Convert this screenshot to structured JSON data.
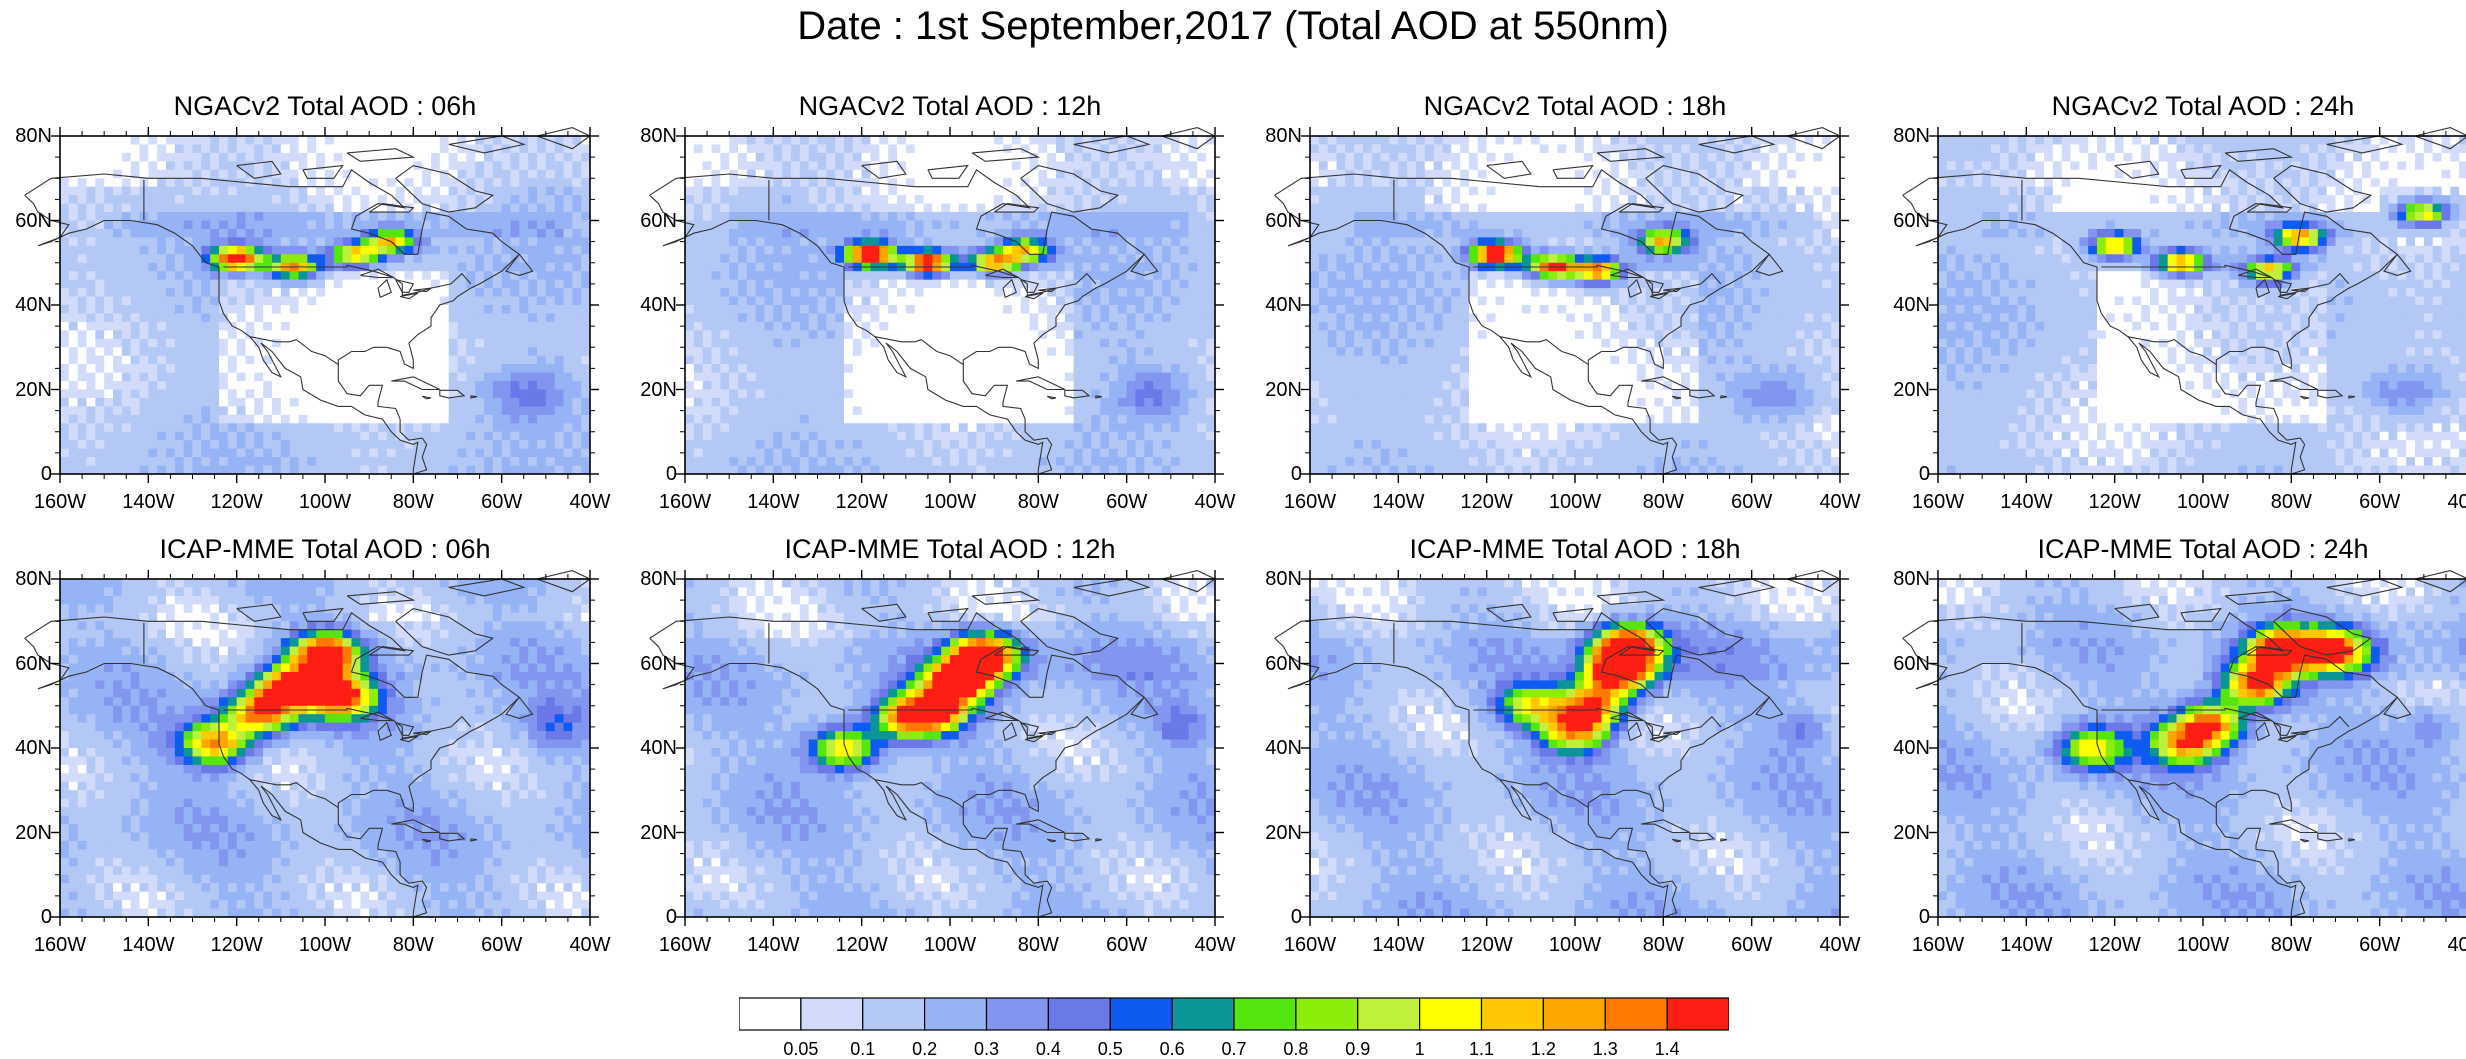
{
  "title": "Date : 1st September,2017 (Total AOD at 550nm)",
  "axis": {
    "lat_ticks": [
      {
        "value": 80,
        "label": "80N"
      },
      {
        "value": 60,
        "label": "60N"
      },
      {
        "value": 40,
        "label": "40N"
      },
      {
        "value": 20,
        "label": "20N"
      },
      {
        "value": 0,
        "label": "0"
      }
    ],
    "lon_ticks": [
      {
        "value": -160,
        "label": "160W"
      },
      {
        "value": -140,
        "label": "140W"
      },
      {
        "value": -120,
        "label": "120W"
      },
      {
        "value": -100,
        "label": "100W"
      },
      {
        "value": -80,
        "label": "80W"
      },
      {
        "value": -60,
        "label": "60W"
      },
      {
        "value": -40,
        "label": "40W"
      }
    ],
    "lon_range": [
      -160,
      -40
    ],
    "lat_range": [
      0,
      80
    ]
  },
  "panels": [
    {
      "title": "NGACv2 Total AOD : 06h"
    },
    {
      "title": "NGACv2 Total AOD : 12h"
    },
    {
      "title": "NGACv2 Total AOD : 18h"
    },
    {
      "title": "NGACv2 Total AOD : 24h"
    },
    {
      "title": "ICAP-MME Total AOD : 06h"
    },
    {
      "title": "ICAP-MME Total AOD : 12h"
    },
    {
      "title": "ICAP-MME Total AOD : 18h"
    },
    {
      "title": "ICAP-MME Total AOD : 24h"
    }
  ],
  "colorbar": {
    "labels": [
      "0.05",
      "0.1",
      "0.2",
      "0.3",
      "0.4",
      "0.5",
      "0.6",
      "0.7",
      "0.8",
      "0.9",
      "1",
      "1.1",
      "1.2",
      "1.3",
      "1.4"
    ],
    "colors": [
      "#ffffff",
      "#d2dcfa",
      "#b4c8f5",
      "#96b4f5",
      "#8296f0",
      "#6a78e8",
      "#0f5af0",
      "#0a9696",
      "#55e60f",
      "#8ced0a",
      "#bef03c",
      "#ffff00",
      "#ffc800",
      "#ffa500",
      "#ff7800",
      "#ff1e14"
    ]
  },
  "chart_data": {
    "type": "heatmap",
    "title": "Date : 1st September,2017 (Total AOD at 550nm)",
    "variable": "Total AOD at 550nm",
    "date": "1st September,2017",
    "xlim": [
      -160,
      -40
    ],
    "ylim": [
      0,
      80
    ],
    "contour_levels": [
      0.05,
      0.1,
      0.2,
      0.3,
      0.4,
      0.5,
      0.6,
      0.7,
      0.8,
      0.9,
      1,
      1.1,
      1.2,
      1.3,
      1.4
    ],
    "panels": [
      {
        "model": "NGACv2",
        "lead": "06h",
        "plumes": [
          {
            "lon": -120,
            "lat": 51,
            "aod": 1.3
          },
          {
            "lon": -107,
            "lat": 49,
            "aod": 1.0
          },
          {
            "lon": -93,
            "lat": 52,
            "aod": 0.9
          },
          {
            "lon": -85,
            "lat": 55,
            "aod": 0.9
          }
        ]
      },
      {
        "model": "NGACv2",
        "lead": "12h",
        "plumes": [
          {
            "lon": -118,
            "lat": 52,
            "aod": 1.4
          },
          {
            "lon": -105,
            "lat": 50,
            "aod": 1.3
          },
          {
            "lon": -90,
            "lat": 50,
            "aod": 1.0
          },
          {
            "lon": -83,
            "lat": 53,
            "aod": 0.9
          }
        ]
      },
      {
        "model": "NGACv2",
        "lead": "18h",
        "plumes": [
          {
            "lon": -118,
            "lat": 52,
            "aod": 1.4
          },
          {
            "lon": -105,
            "lat": 49,
            "aod": 1.2
          },
          {
            "lon": -95,
            "lat": 48,
            "aod": 1.1
          },
          {
            "lon": -80,
            "lat": 55,
            "aod": 0.9
          }
        ]
      },
      {
        "model": "NGACv2",
        "lead": "24h",
        "plumes": [
          {
            "lon": -120,
            "lat": 54,
            "aod": 1.0
          },
          {
            "lon": -105,
            "lat": 50,
            "aod": 1.0
          },
          {
            "lon": -85,
            "lat": 48,
            "aod": 0.9
          },
          {
            "lon": -78,
            "lat": 56,
            "aod": 1.0
          },
          {
            "lon": -50,
            "lat": 62,
            "aod": 0.9
          }
        ]
      },
      {
        "model": "ICAP-MME",
        "lead": "06h",
        "plumes": [
          {
            "lon": -100,
            "lat": 62,
            "aod": 1.4
          },
          {
            "lon": -108,
            "lat": 54,
            "aod": 1.3
          },
          {
            "lon": -115,
            "lat": 48,
            "aod": 1.0
          },
          {
            "lon": -96,
            "lat": 52,
            "aod": 1.1
          },
          {
            "lon": -125,
            "lat": 41,
            "aod": 1.0
          }
        ]
      },
      {
        "model": "ICAP-MME",
        "lead": "12h",
        "plumes": [
          {
            "lon": -92,
            "lat": 62,
            "aod": 1.4
          },
          {
            "lon": -98,
            "lat": 56,
            "aod": 1.3
          },
          {
            "lon": -103,
            "lat": 49,
            "aod": 1.0
          },
          {
            "lon": -110,
            "lat": 47,
            "aod": 0.9
          },
          {
            "lon": -124,
            "lat": 40,
            "aod": 0.9
          }
        ]
      },
      {
        "model": "ICAP-MME",
        "lead": "18h",
        "plumes": [
          {
            "lon": -88,
            "lat": 64,
            "aod": 1.4
          },
          {
            "lon": -90,
            "lat": 58,
            "aod": 1.3
          },
          {
            "lon": -96,
            "lat": 50,
            "aod": 1.0
          },
          {
            "lon": -100,
            "lat": 44,
            "aod": 0.9
          },
          {
            "lon": -110,
            "lat": 50,
            "aod": 0.7
          }
        ]
      },
      {
        "model": "ICAP-MME",
        "lead": "24h",
        "plumes": [
          {
            "lon": -82,
            "lat": 63,
            "aod": 1.4
          },
          {
            "lon": -88,
            "lat": 55,
            "aod": 1.2
          },
          {
            "lon": -98,
            "lat": 46,
            "aod": 1.0
          },
          {
            "lon": -104,
            "lat": 41,
            "aod": 0.9
          },
          {
            "lon": -70,
            "lat": 63,
            "aod": 1.1
          },
          {
            "lon": -125,
            "lat": 40,
            "aod": 0.8
          }
        ]
      }
    ]
  }
}
